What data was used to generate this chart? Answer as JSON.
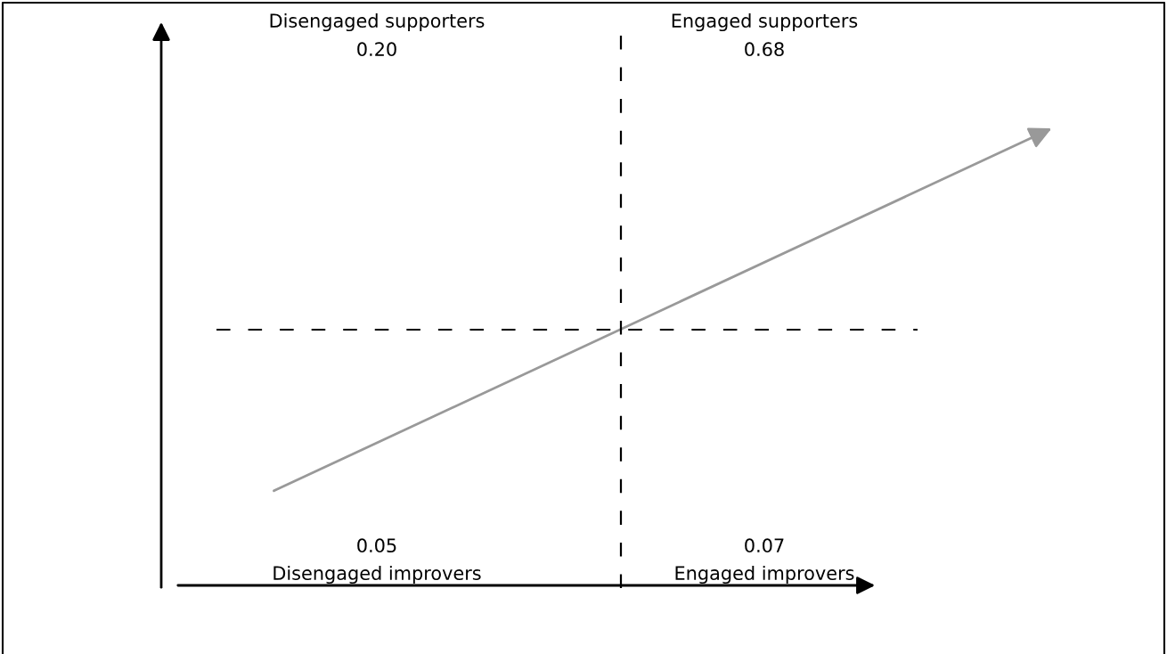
{
  "chart_data": {
    "type": "other",
    "categories": [
      "Disengaged supporters",
      "Engaged supporters",
      "Disengaged improvers",
      "Engaged improvers"
    ],
    "values": [
      0.2,
      0.68,
      0.05,
      0.07
    ],
    "value_labels": [
      "0.20",
      "0.68",
      "0.05",
      "0.07"
    ]
  }
}
